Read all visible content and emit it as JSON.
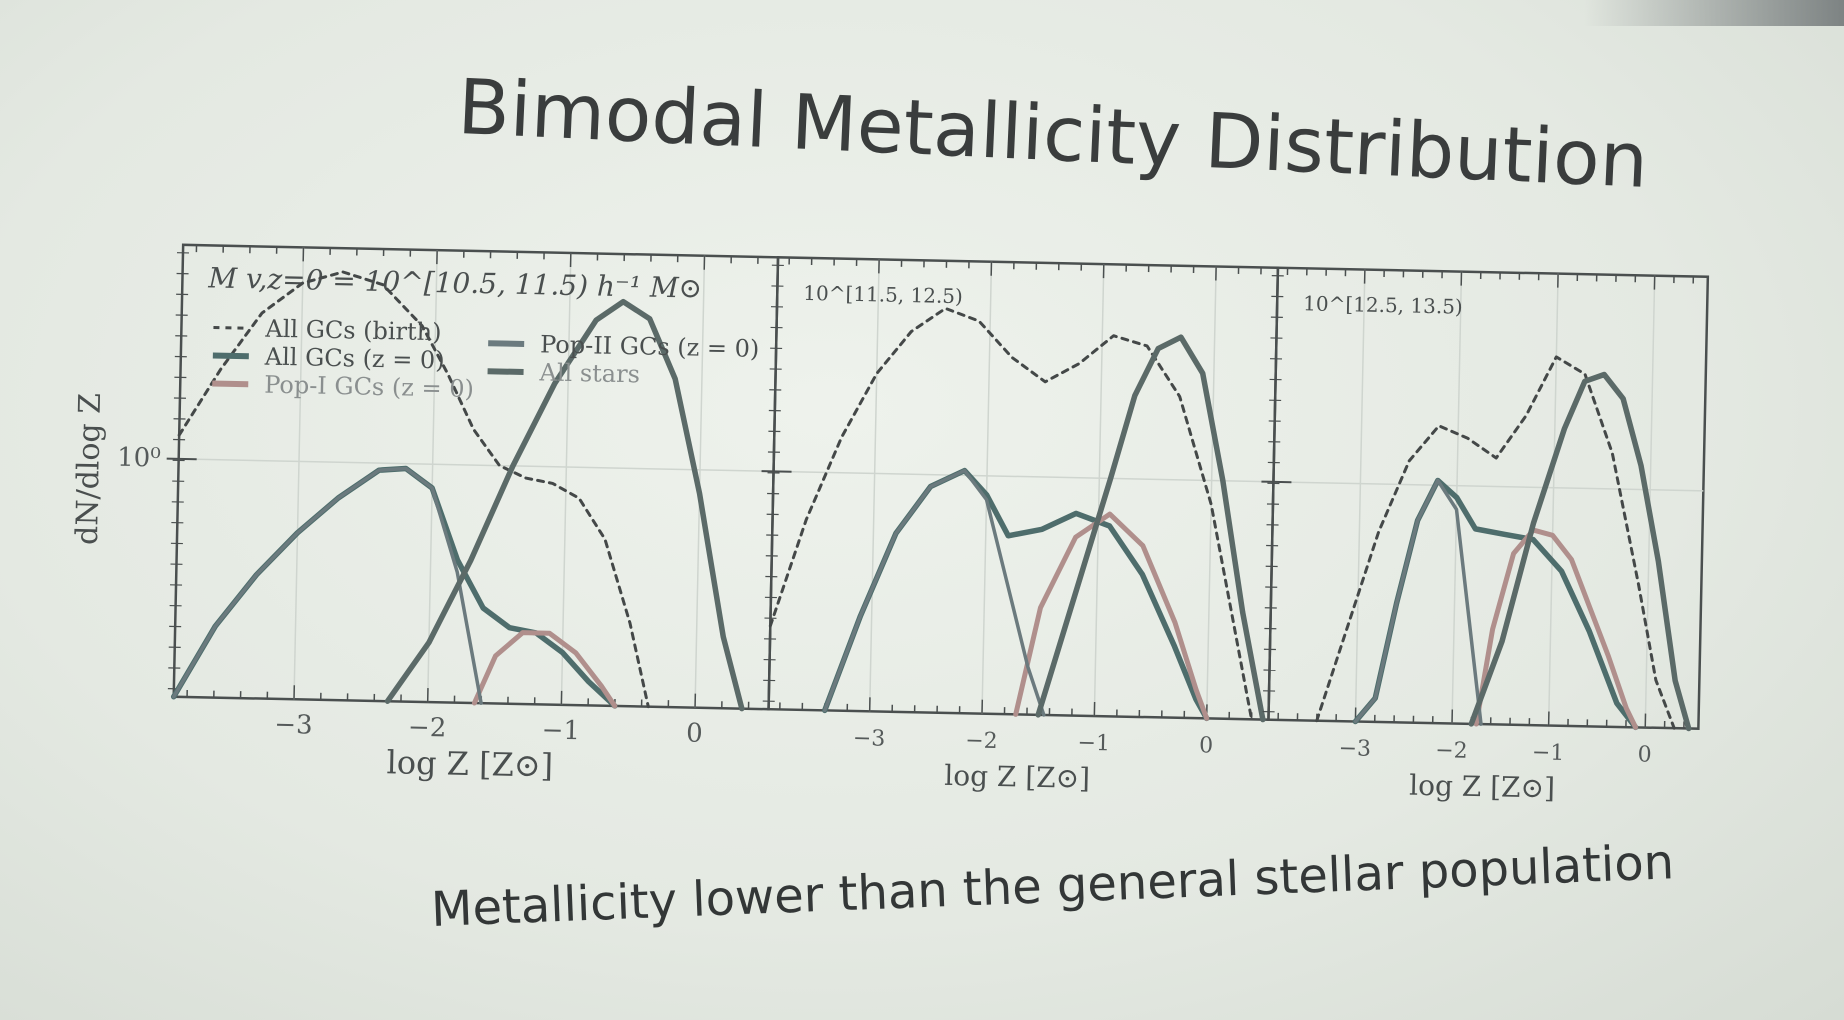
{
  "slide": {
    "title": "Bimodal Metallicity Distribution",
    "subtitle": "Metallicity lower than the general stellar population"
  },
  "colors": {
    "background": "#e4e9e2",
    "axes": "#4a4f4f",
    "all_gcs": "#4e6d6c",
    "pop1": "#b08f8c",
    "pop2": "#6b7a7e",
    "all_stars": "#5b6a68",
    "dashed": "#444848"
  },
  "chart_data": {
    "type": "line",
    "ylabel": "dN/dlog Z",
    "ytick_label": "10⁰",
    "legend": {
      "placement": "top-left",
      "entries": [
        {
          "label": "All GCs (birth)",
          "style": "dashed"
        },
        {
          "label": "All GCs (z = 0)",
          "style": "solid"
        },
        {
          "label": "Pop-I GCs (z = 0)",
          "style": "solid"
        },
        {
          "label": "Pop-II GCs (z = 0)",
          "style": "solid"
        },
        {
          "label": "All stars",
          "style": "solid"
        }
      ]
    },
    "panels": [
      {
        "annotation": "M v,z=0 = 10^[10.5, 11.5) h⁻¹ M⊙",
        "xlabel": "log Z [Z⊙]",
        "xticks": [
          -3,
          -2,
          -1,
          0
        ],
        "xlim": [
          -3.9,
          0.55
        ],
        "ylim": [
          0,
          1.9
        ],
        "series": [
          {
            "name": "All GCs (birth)",
            "x": [
              -3.9,
              -3.6,
              -3.3,
              -3.0,
              -2.7,
              -2.4,
              -2.1,
              -1.9,
              -1.7,
              -1.5,
              -1.3,
              -1.1,
              -0.9,
              -0.7,
              -0.5,
              -0.35
            ],
            "y": [
              1.1,
              1.38,
              1.62,
              1.75,
              1.8,
              1.75,
              1.58,
              1.38,
              1.15,
              1.0,
              0.95,
              0.93,
              0.87,
              0.7,
              0.35,
              0.0
            ]
          },
          {
            "name": "All GCs (z = 0)",
            "x": [
              -3.9,
              -3.6,
              -3.3,
              -3.0,
              -2.7,
              -2.4,
              -2.2,
              -2.0,
              -1.8,
              -1.6,
              -1.4,
              -1.2,
              -1.0,
              -0.8,
              -0.6
            ],
            "y": [
              0.0,
              0.3,
              0.52,
              0.7,
              0.85,
              0.97,
              0.98,
              0.9,
              0.6,
              0.4,
              0.32,
              0.3,
              0.22,
              0.1,
              0.0
            ]
          },
          {
            "name": "Pop-I GCs (z = 0)",
            "x": [
              -1.65,
              -1.5,
              -1.3,
              -1.1,
              -0.9,
              -0.7,
              -0.6
            ],
            "y": [
              0.0,
              0.2,
              0.3,
              0.3,
              0.22,
              0.08,
              0.0
            ]
          },
          {
            "name": "Pop-II GCs (z = 0)",
            "x": [
              -3.9,
              -3.6,
              -3.3,
              -3.0,
              -2.7,
              -2.4,
              -2.2,
              -2.0,
              -1.8,
              -1.6
            ],
            "y": [
              0.0,
              0.3,
              0.52,
              0.7,
              0.85,
              0.97,
              0.98,
              0.9,
              0.55,
              0.0
            ]
          },
          {
            "name": "All stars",
            "x": [
              -2.3,
              -2.0,
              -1.7,
              -1.4,
              -1.1,
              -0.8,
              -0.6,
              -0.4,
              -0.2,
              0.0,
              0.2,
              0.35
            ],
            "y": [
              0.0,
              0.25,
              0.6,
              1.0,
              1.35,
              1.62,
              1.7,
              1.63,
              1.38,
              0.9,
              0.3,
              0.0
            ]
          }
        ]
      },
      {
        "annotation": "10^[11.5, 12.5)",
        "xlabel": "log Z [Z⊙]",
        "xticks": [
          -3,
          -2,
          -1,
          0
        ],
        "xlim": [
          -3.9,
          0.55
        ],
        "ylim": [
          0,
          1.9
        ],
        "series": [
          {
            "name": "All GCs (birth)",
            "x": [
              -3.9,
              -3.6,
              -3.3,
              -3.0,
              -2.7,
              -2.4,
              -2.1,
              -1.8,
              -1.5,
              -1.2,
              -0.9,
              -0.6,
              -0.3,
              0.0,
              0.2,
              0.4
            ],
            "y": [
              0.35,
              0.8,
              1.15,
              1.42,
              1.6,
              1.7,
              1.65,
              1.5,
              1.4,
              1.48,
              1.6,
              1.56,
              1.35,
              0.9,
              0.45,
              0.0
            ]
          },
          {
            "name": "All GCs (z = 0)",
            "x": [
              -3.4,
              -3.1,
              -2.8,
              -2.5,
              -2.2,
              -2.0,
              -1.8,
              -1.5,
              -1.2,
              -0.9,
              -0.6,
              -0.3,
              -0.1,
              0.0
            ],
            "y": [
              0.0,
              0.4,
              0.75,
              0.95,
              1.02,
              0.92,
              0.75,
              0.78,
              0.85,
              0.8,
              0.6,
              0.3,
              0.08,
              0.0
            ]
          },
          {
            "name": "Pop-I GCs (z = 0)",
            "x": [
              -1.7,
              -1.5,
              -1.2,
              -0.9,
              -0.6,
              -0.3,
              -0.1,
              0.0
            ],
            "y": [
              0.0,
              0.45,
              0.75,
              0.85,
              0.72,
              0.4,
              0.12,
              0.0
            ]
          },
          {
            "name": "Pop-II GCs (z = 0)",
            "x": [
              -3.4,
              -3.1,
              -2.8,
              -2.5,
              -2.2,
              -2.0,
              -1.8,
              -1.6,
              -1.45
            ],
            "y": [
              0.0,
              0.4,
              0.75,
              0.95,
              1.02,
              0.9,
              0.55,
              0.2,
              0.0
            ]
          },
          {
            "name": "All stars",
            "x": [
              -1.5,
              -1.2,
              -0.9,
              -0.7,
              -0.5,
              -0.3,
              -0.1,
              0.1,
              0.3,
              0.5
            ],
            "y": [
              0.0,
              0.5,
              1.0,
              1.35,
              1.55,
              1.6,
              1.45,
              1.0,
              0.45,
              0.0
            ]
          }
        ]
      },
      {
        "annotation": "10^[12.5, 13.5)",
        "xlabel": "log Z [Z⊙]",
        "xticks": [
          -3,
          -2,
          -1,
          0
        ],
        "xlim": [
          -3.9,
          0.55
        ],
        "ylim": [
          0,
          1.9
        ],
        "series": [
          {
            "name": "All GCs (birth)",
            "x": [
              -3.4,
              -3.1,
              -2.8,
              -2.5,
              -2.2,
              -1.9,
              -1.6,
              -1.3,
              -1.0,
              -0.7,
              -0.4,
              -0.1,
              0.1,
              0.3
            ],
            "y": [
              0.0,
              0.4,
              0.8,
              1.1,
              1.25,
              1.2,
              1.12,
              1.3,
              1.55,
              1.48,
              1.15,
              0.6,
              0.2,
              0.0
            ]
          },
          {
            "name": "All GCs (z = 0)",
            "x": [
              -3.0,
              -2.8,
              -2.6,
              -2.4,
              -2.2,
              -2.0,
              -1.8,
              -1.5,
              -1.2,
              -0.9,
              -0.6,
              -0.3,
              -0.1
            ],
            "y": [
              0.0,
              0.1,
              0.5,
              0.85,
              1.02,
              0.95,
              0.82,
              0.8,
              0.78,
              0.65,
              0.4,
              0.1,
              0.0
            ]
          },
          {
            "name": "Pop-I GCs (z = 0)",
            "x": [
              -1.75,
              -1.6,
              -1.4,
              -1.2,
              -1.0,
              -0.8,
              -0.6,
              -0.4,
              -0.2,
              -0.1
            ],
            "y": [
              0.0,
              0.4,
              0.72,
              0.82,
              0.8,
              0.7,
              0.5,
              0.3,
              0.08,
              0.0
            ]
          },
          {
            "name": "Pop-II GCs (z = 0)",
            "x": [
              -3.0,
              -2.8,
              -2.6,
              -2.4,
              -2.2,
              -2.0,
              -1.85,
              -1.7
            ],
            "y": [
              0.0,
              0.1,
              0.5,
              0.85,
              1.02,
              0.9,
              0.45,
              0.0
            ]
          },
          {
            "name": "All stars",
            "x": [
              -1.8,
              -1.5,
              -1.2,
              -0.9,
              -0.7,
              -0.5,
              -0.3,
              -0.1,
              0.1,
              0.3,
              0.45
            ],
            "y": [
              0.0,
              0.35,
              0.85,
              1.25,
              1.45,
              1.48,
              1.38,
              1.1,
              0.7,
              0.2,
              0.0
            ]
          }
        ]
      }
    ]
  }
}
